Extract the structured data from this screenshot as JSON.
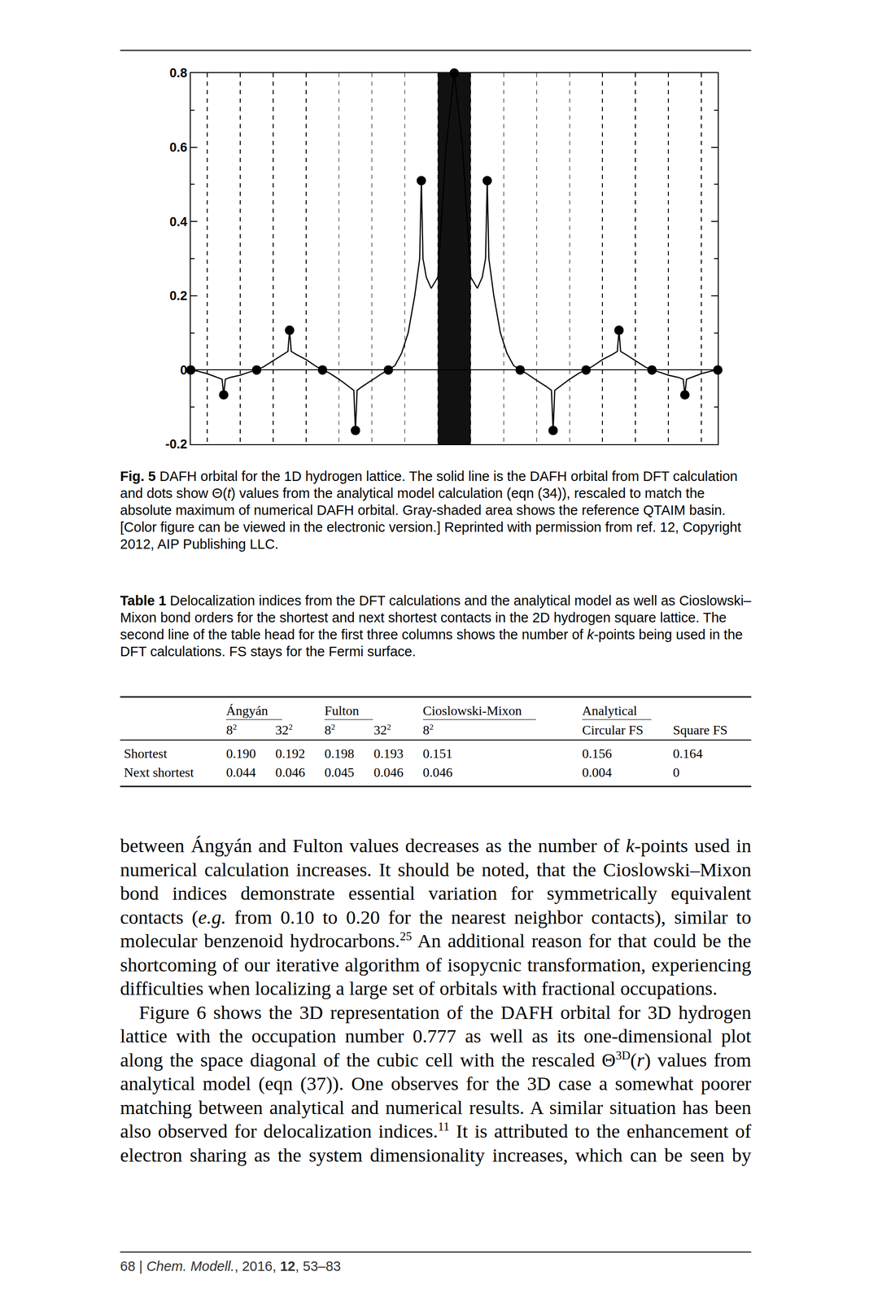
{
  "chart_data": {
    "type": "line",
    "xlim": [
      -8,
      8
    ],
    "ylim": [
      -0.2,
      0.8
    ],
    "xticks": [
      -7.5,
      -6.5,
      -5.5,
      -4.5,
      -3.5,
      -2.5,
      -1.5,
      -0.5,
      0.5,
      1.5,
      2.5,
      3.5,
      4.5,
      5.5,
      6.5,
      7.5
    ],
    "yticks": [
      -0.2,
      0,
      0.2,
      0.4,
      0.6,
      0.8
    ],
    "tick_labels": "y",
    "grid": true,
    "qtaim_basin": {
      "x": [
        -0.5,
        0.5
      ],
      "color": "#111111"
    },
    "series": [
      {
        "type": "line",
        "color": "#000000",
        "line_style": "solid",
        "x": [
          -8,
          -7.8,
          -7.5,
          -7.2,
          -7.05,
          -7,
          -6.95,
          -6.8,
          -6.5,
          -6.2,
          -6,
          -5.8,
          -5.5,
          -5.2,
          -5.05,
          -5,
          -4.95,
          -4.8,
          -4.5,
          -4.2,
          -4,
          -3.8,
          -3.5,
          -3.2,
          -3.05,
          -3,
          -2.95,
          -2.8,
          -2.5,
          -2.2,
          -2,
          -1.8,
          -1.6,
          -1.4,
          -1.2,
          -1.05,
          -1,
          -0.95,
          -0.85,
          -0.7,
          -0.5,
          -0.25,
          0,
          0.25,
          0.5,
          0.7,
          0.85,
          0.95,
          1,
          1.05,
          1.2,
          1.4,
          1.6,
          1.8,
          2,
          2.2,
          2.5,
          2.8,
          2.95,
          3,
          3.05,
          3.2,
          3.5,
          3.8,
          4,
          4.2,
          4.5,
          4.8,
          4.95,
          5,
          5.05,
          5.2,
          5.5,
          5.8,
          6,
          6.2,
          6.5,
          6.8,
          6.95,
          7,
          7.05,
          7.2,
          7.5,
          7.8,
          8
        ],
        "values": [
          0,
          -0.003,
          -0.01,
          -0.02,
          -0.025,
          -0.067,
          -0.025,
          -0.02,
          -0.014,
          -0.005,
          0,
          0.008,
          0.025,
          0.042,
          0.05,
          0.107,
          0.05,
          0.042,
          0.028,
          0.01,
          0,
          -0.008,
          -0.025,
          -0.045,
          -0.055,
          -0.163,
          -0.055,
          -0.045,
          -0.028,
          -0.01,
          0,
          0.012,
          0.045,
          0.1,
          0.2,
          0.3,
          0.51,
          0.3,
          0.25,
          0.22,
          0.25,
          0.6,
          0.8,
          0.6,
          0.25,
          0.22,
          0.25,
          0.3,
          0.51,
          0.3,
          0.2,
          0.1,
          0.045,
          0.012,
          0,
          -0.01,
          -0.028,
          -0.045,
          -0.055,
          -0.163,
          -0.055,
          -0.045,
          -0.025,
          -0.008,
          0,
          0.01,
          0.028,
          0.042,
          0.05,
          0.107,
          0.05,
          0.042,
          0.025,
          0.008,
          0,
          -0.005,
          -0.014,
          -0.02,
          -0.025,
          -0.067,
          -0.025,
          -0.02,
          -0.01,
          -0.003,
          0
        ]
      },
      {
        "type": "scatter",
        "color": "#000000",
        "marker": "circle",
        "x": [
          -8,
          -7,
          -6,
          -5,
          -4,
          -3,
          -2,
          -1,
          0,
          1,
          2,
          3,
          4,
          5,
          6,
          7,
          8
        ],
        "values": [
          0,
          -0.067,
          0,
          0.107,
          0,
          -0.163,
          0,
          0.51,
          0.8,
          0.51,
          0,
          -0.163,
          0,
          0.107,
          0,
          -0.067,
          0
        ]
      }
    ]
  },
  "figure_caption": [
    {
      "text": "Fig. 5",
      "style": "bold"
    },
    {
      "text": " DAFH orbital for the 1D hydrogen lattice. The solid line is the DAFH orbital from DFT calculation and dots show Θ("
    },
    {
      "text": "t",
      "style": "italic"
    },
    {
      "text": ") values from the analytical model calculation (eqn (34)), rescaled to match the absolute maximum of numerical DAFH orbital. Gray-shaded area shows the reference QTAIM basin. [Color figure can be viewed in the electronic version.] Reprinted with permission from ref. 12, Copyright 2012, AIP Publishing LLC."
    }
  ],
  "table_caption": [
    {
      "text": "Table 1",
      "style": "bold"
    },
    {
      "text": " Delocalization indices from the DFT calculations and the analytical model as well as Cioslowski–Mixon bond orders for the shortest and next shortest contacts in the 2D hydrogen square lattice. The second line of the table head for the first three columns shows the number of "
    },
    {
      "text": "k",
      "style": "italic"
    },
    {
      "text": "-points being used in the DFT calculations. FS stays for the Fermi surface."
    }
  ],
  "table": {
    "groups": [
      {
        "label": "Ángyán",
        "sub": [
          {
            "base": "8",
            "sup": "2"
          },
          {
            "base": "32",
            "sup": "2"
          }
        ]
      },
      {
        "label": "Fulton",
        "sub": [
          {
            "base": "8",
            "sup": "2"
          },
          {
            "base": "32",
            "sup": "2"
          }
        ]
      },
      {
        "label": "Cioslowski-Mixon",
        "sub": [
          {
            "base": "8",
            "sup": "2"
          }
        ]
      },
      {
        "label": "Analytical",
        "sub": [
          {
            "base": "Circular FS"
          },
          {
            "base": "Square FS"
          }
        ]
      }
    ],
    "rows": [
      {
        "label": "Shortest",
        "values": [
          "0.190",
          "0.192",
          "0.198",
          "0.193",
          "0.151",
          "0.156",
          "0.164"
        ]
      },
      {
        "label": "Next shortest",
        "values": [
          "0.044",
          "0.046",
          "0.045",
          "0.046",
          "0.046",
          "0.004",
          "0"
        ]
      }
    ]
  },
  "body": [
    {
      "kind": "continued",
      "segments": [
        {
          "text": "between Ángyán and Fulton values decreases as the number of "
        },
        {
          "text": "k",
          "style": "italic"
        },
        {
          "text": "-points used in numerical calculation increases. It should be noted, that the Cioslowski–Mixon bond indices demonstrate essential variation for symmetrically equivalent contacts ("
        },
        {
          "text": "e.g.",
          "style": "italic"
        },
        {
          "text": " from 0.10 to 0.20 for the nearest neighbor contacts), similar to molecular benzenoid hydrocarbons."
        },
        {
          "text": "25",
          "style": "sup"
        },
        {
          "text": " An additional reason for that could be the shortcoming of our iterative algorithm of isopycnic transformation, experiencing difficulties when localizing a large set of orbitals with fractional occupations."
        }
      ]
    },
    {
      "kind": "indented_continues",
      "segments": [
        {
          "text": "Figure 6 shows the 3D representation of the DAFH orbital for 3D hydrogen lattice with the occupation number 0.777 as well as its one-dimensional plot along the space diagonal of the cubic cell with the rescaled Θ"
        },
        {
          "text": "3D",
          "style": "sup"
        },
        {
          "text": "("
        },
        {
          "text": "r",
          "style": "italic"
        },
        {
          "text": ") values from analytical model (eqn (37)). One observes for the 3D case a somewhat poorer matching between analytical and numerical results. A similar situation has been also observed for delocalization indices."
        },
        {
          "text": "11",
          "style": "sup"
        },
        {
          "text": " It is attributed to the enhancement of electron sharing as the system dimensionality increases, which can be seen by"
        }
      ]
    }
  ],
  "footer": [
    {
      "text": "68 | "
    },
    {
      "text": "Chem. Modell.",
      "style": "italic"
    },
    {
      "text": ", 2016, "
    },
    {
      "text": "12",
      "style": "bold"
    },
    {
      "text": ", 53–83"
    }
  ]
}
